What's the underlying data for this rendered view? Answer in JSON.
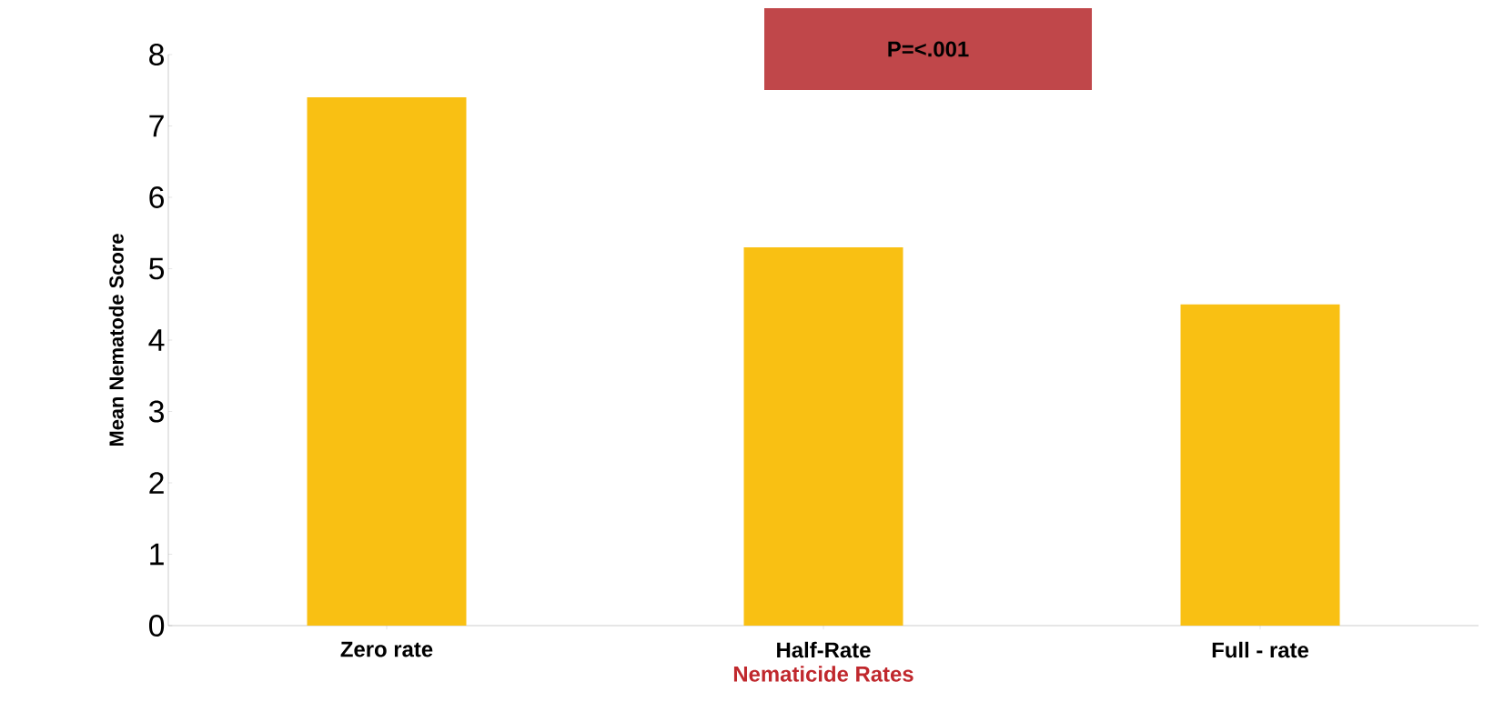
{
  "chart_data": {
    "type": "bar",
    "xlabel": "Nematicide Rates",
    "ylabel": "Mean Nematode Score",
    "categories": [
      "Zero rate",
      "Half-Rate",
      "Full - rate"
    ],
    "values": [
      7.4,
      5.3,
      4.5
    ],
    "color": "#f9c013",
    "ylim": [
      0,
      8
    ],
    "yticks": [
      0,
      1,
      2,
      3,
      4,
      5,
      6,
      7,
      8
    ],
    "grid": false,
    "annotations": [
      "P=<.001"
    ]
  }
}
